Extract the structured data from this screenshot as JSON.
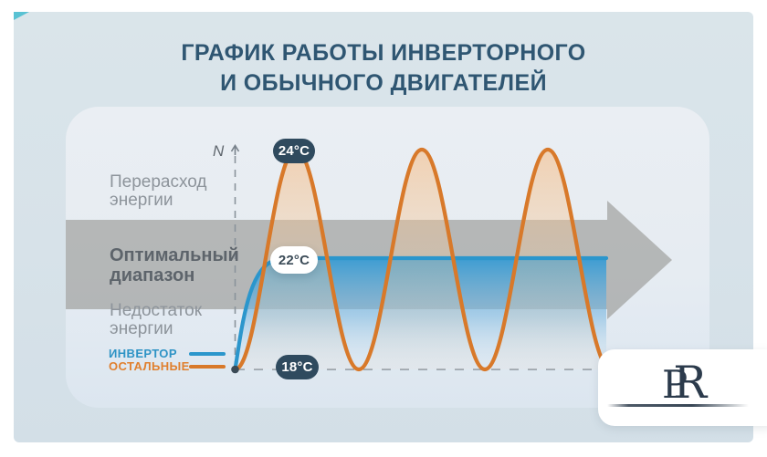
{
  "header": {
    "title_line1": "ГРАФИК РАБОТЫ ИНВЕРТОРНОГО",
    "title_line2": "И ОБЫЧНОГО ДВИГАТЕЛЕЙ"
  },
  "chart_data": {
    "type": "line",
    "title": "График работы инверторного и обычного двигателей",
    "y_axis_label": "N",
    "x_axis": {
      "label": "",
      "ticks": "none"
    },
    "grid": "off",
    "zones": [
      {
        "line1": "Перерасход",
        "line2": "энергии",
        "position": "above-optimal-band"
      },
      {
        "line1": "Оптимальный",
        "line2": "диапазон",
        "position": "optimal-band-arrow"
      },
      {
        "line1": "Недостаток",
        "line2": "энергии",
        "position": "below-optimal-band"
      }
    ],
    "temperature_labels": [
      {
        "label": "24°C",
        "value": 24,
        "style": "dark"
      },
      {
        "label": "22°C",
        "value": 22,
        "style": "light"
      },
      {
        "label": "18°C",
        "value": 18,
        "style": "dark"
      }
    ],
    "series": [
      {
        "name": "ИНВЕРТОР",
        "color": "#2b96cc",
        "shape": "rise_then_steady",
        "start_value": 18,
        "steady_value": 22,
        "description": "rises once from 18°C and holds steady at 22°C"
      },
      {
        "name": "ОСТАЛЬНЫЕ",
        "color": "#d8792a",
        "shape": "sine_wave",
        "min_value": 18,
        "max_value": 24,
        "cycles": 3,
        "description": "oscillates repeatedly between 18°C and 24°C"
      }
    ],
    "legend": [
      {
        "label": "ИНВЕРТОР",
        "color": "#2e93c5"
      },
      {
        "label": "ОСТАЛЬНЫЕ",
        "color": "#e0802f"
      }
    ],
    "legend_position": "bottom-left"
  },
  "colors": {
    "title": "#2f5672",
    "background": "#d9e4e9",
    "panel": "#e9eef3",
    "inverter_blue": "#2b96cc",
    "others_orange": "#d8792a",
    "optimal_band_gray": "#b5b4b1",
    "badge_dark": "#2f4a5e"
  },
  "watermark": {
    "letter_p": "P",
    "letter_r": "R"
  }
}
